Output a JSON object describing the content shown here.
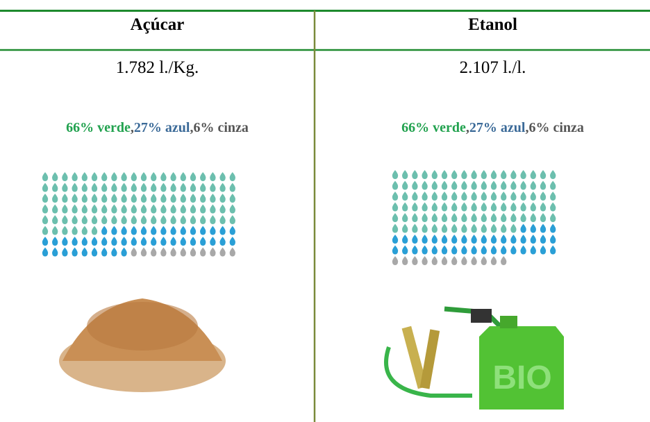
{
  "table": {
    "columns": [
      {
        "title": "Açúcar",
        "rate": "1.782 l./Kg.",
        "shares": [
          "66% verde",
          "27% azul",
          "6% cinza"
        ]
      },
      {
        "title": "Etanol",
        "rate": "2.107 l./l.",
        "shares": [
          "66% verde",
          "27% azul",
          "6% cinza"
        ]
      }
    ],
    "separator": ","
  }
}
